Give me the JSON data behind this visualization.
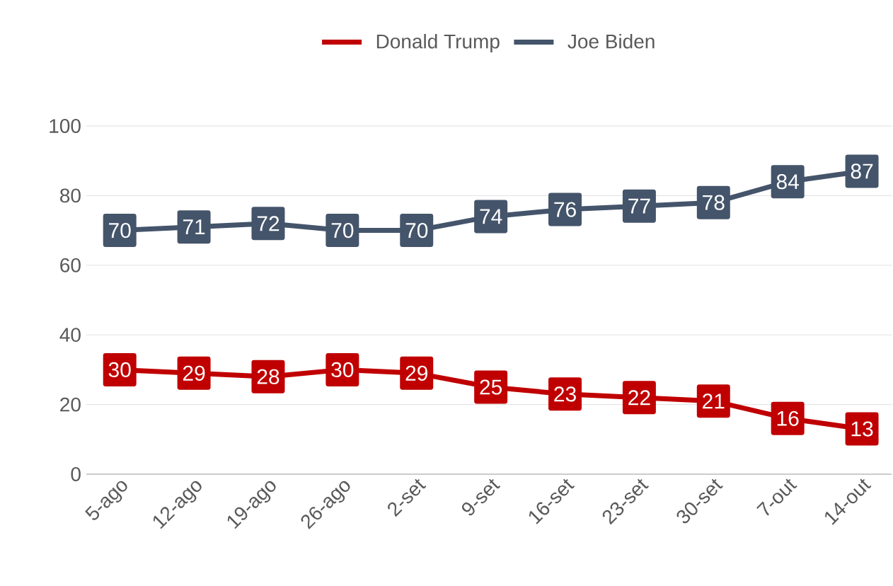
{
  "chart_data": {
    "type": "line",
    "categories": [
      "5-ago",
      "12-ago",
      "19-ago",
      "26-ago",
      "2-set",
      "9-set",
      "16-set",
      "23-set",
      "30-set",
      "7-out",
      "14-out"
    ],
    "series": [
      {
        "name": "Donald Trump",
        "color": "#c00000",
        "values": [
          30,
          29,
          28,
          30,
          29,
          25,
          23,
          22,
          21,
          16,
          13
        ]
      },
      {
        "name": "Joe Biden",
        "color": "#44546a",
        "values": [
          70,
          71,
          72,
          70,
          70,
          74,
          76,
          77,
          78,
          84,
          87
        ]
      }
    ],
    "ylim": [
      0,
      100
    ],
    "yticks": [
      0,
      20,
      40,
      60,
      80,
      100
    ],
    "grid": "y",
    "legend": "top",
    "marker": "square",
    "data_labels": true
  }
}
